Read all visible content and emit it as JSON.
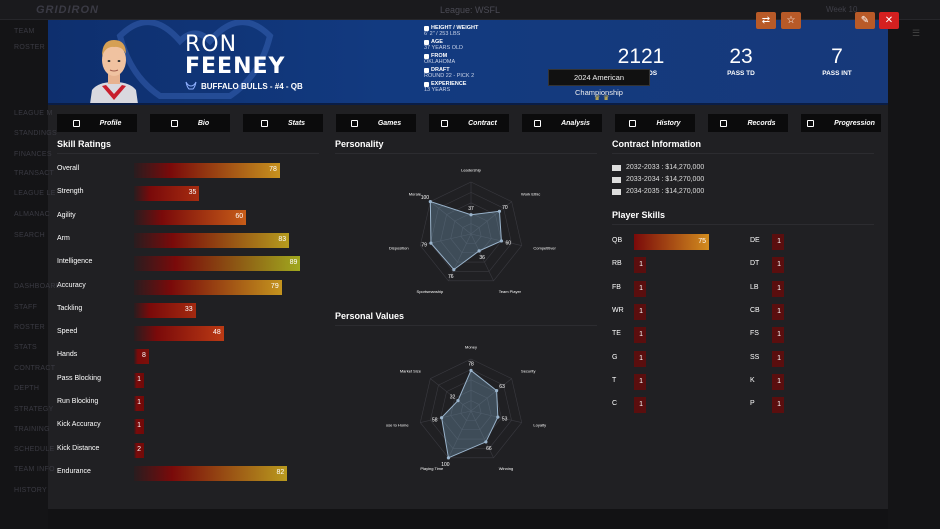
{
  "background": {
    "logo": "GRIDIRON",
    "league": "League: WSFL",
    "right_text": "Week 10",
    "sidebar_items": [
      "TEAM",
      "ROSTER",
      "LEAGUE M",
      "STANDINGS",
      "FINANCES",
      "TRANSACT",
      "LEAGUE LE",
      "ALMANAC",
      "SEARCH",
      "DASHBOARD",
      "STAFF",
      "ROSTER",
      "STATS",
      "CONTRACT",
      "DEPTH",
      "STRATEGY",
      "TRAINING",
      "SCHEDULE",
      "TEAM INFO",
      "HISTORY"
    ]
  },
  "player": {
    "first_name": "RON",
    "last_name": "FEENEY",
    "team_line": "BUFFALO BULLS - #4 - QB",
    "info": [
      {
        "label": "HEIGHT / WEIGHT",
        "value": "6' 2\" / 253 LBS"
      },
      {
        "label": "AGE",
        "value": "37 YEARS OLD"
      },
      {
        "label": "FROM",
        "value": "OKLAHOMA"
      },
      {
        "label": "DRAFT",
        "value": "ROUND 22 - PICK 2"
      },
      {
        "label": "EXPERIENCE",
        "value": "13 YEARS"
      }
    ],
    "stats": [
      {
        "value": "2121",
        "label": "PASS YDS"
      },
      {
        "value": "23",
        "label": "PASS TD"
      },
      {
        "value": "7",
        "label": "PASS INT"
      }
    ],
    "tooltip": "2024 American Championship"
  },
  "tabs": [
    "Profile",
    "Bio",
    "Stats",
    "Games",
    "Contract",
    "Analysis",
    "History",
    "Records",
    "Progression"
  ],
  "skill_ratings": {
    "title": "Skill Ratings",
    "items": [
      {
        "name": "Overall",
        "value": 78
      },
      {
        "name": "Strength",
        "value": 35
      },
      {
        "name": "Agility",
        "value": 60
      },
      {
        "name": "Arm",
        "value": 83
      },
      {
        "name": "Intelligence",
        "value": 89
      },
      {
        "name": "Accuracy",
        "value": 79
      },
      {
        "name": "Tackling",
        "value": 33
      },
      {
        "name": "Speed",
        "value": 48
      },
      {
        "name": "Hands",
        "value": 8
      },
      {
        "name": "Pass Blocking",
        "value": 1
      },
      {
        "name": "Run Blocking",
        "value": 1
      },
      {
        "name": "Kick Accuracy",
        "value": 1
      },
      {
        "name": "Kick Distance",
        "value": 2
      },
      {
        "name": "Endurance",
        "value": 82
      }
    ]
  },
  "personality": {
    "title": "Personality",
    "axes": [
      {
        "label": "Leadership",
        "value": 37
      },
      {
        "label": "Work Ethic",
        "value": 70
      },
      {
        "label": "Competitiveness",
        "value": 60
      },
      {
        "label": "Team Player",
        "value": 36
      },
      {
        "label": "Sportsmanship",
        "value": 76
      },
      {
        "label": "Disposition",
        "value": 79
      },
      {
        "label": "Morale",
        "value": 100
      }
    ]
  },
  "personal_values": {
    "title": "Personal Values",
    "axes": [
      {
        "label": "Money",
        "value": 78
      },
      {
        "label": "Security",
        "value": 63
      },
      {
        "label": "Loyalty",
        "value": 53
      },
      {
        "label": "Winning",
        "value": 66
      },
      {
        "label": "Playing Time",
        "value": 100
      },
      {
        "label": "Close to Home",
        "value": 58
      },
      {
        "label": "Market Size",
        "value": 32
      }
    ]
  },
  "contract": {
    "title": "Contract Information",
    "rows": [
      "2032-2033 : $14,270,000",
      "2033-2034 : $14,270,000",
      "2034-2035 : $14,270,000"
    ]
  },
  "player_skills": {
    "title": "Player Skills",
    "left": [
      {
        "pos": "QB",
        "value": 75
      },
      {
        "pos": "RB",
        "value": 1
      },
      {
        "pos": "FB",
        "value": 1
      },
      {
        "pos": "WR",
        "value": 1
      },
      {
        "pos": "TE",
        "value": 1
      },
      {
        "pos": "G",
        "value": 1
      },
      {
        "pos": "T",
        "value": 1
      },
      {
        "pos": "C",
        "value": 1
      }
    ],
    "right": [
      {
        "pos": "DE",
        "value": 1
      },
      {
        "pos": "DT",
        "value": 1
      },
      {
        "pos": "LB",
        "value": 1
      },
      {
        "pos": "CB",
        "value": 1
      },
      {
        "pos": "FS",
        "value": 1
      },
      {
        "pos": "SS",
        "value": 1
      },
      {
        "pos": "K",
        "value": 1
      },
      {
        "pos": "P",
        "value": 1
      }
    ]
  },
  "colors": {
    "header": "#123a80",
    "accent_orange": "#b85a28",
    "close_red": "#d42020",
    "bar_low": "#7a0a0a",
    "bar_high": "#7fbf1c"
  }
}
